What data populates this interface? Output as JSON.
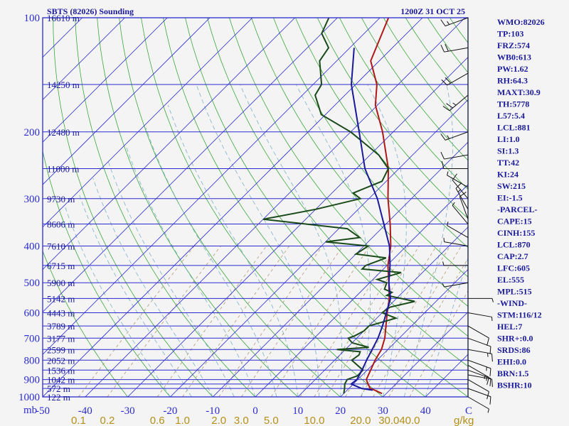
{
  "chart_data": {
    "type": "line",
    "subtype": "skew-t log-p sounding",
    "title_left": "SBTS (82026) Sounding",
    "title_right": "1200Z 31 OCT 25",
    "pressure_unit": "mb",
    "pressure_ticks": [
      "100",
      "200",
      "300",
      "400",
      "500",
      "600",
      "700",
      "800",
      "900",
      "1000"
    ],
    "pressure_levels": [
      100,
      150,
      200,
      250,
      300,
      350,
      400,
      450,
      500,
      550,
      600,
      650,
      700,
      750,
      800,
      850,
      900,
      925,
      950,
      1000
    ],
    "height_labels": [
      {
        "p": 100,
        "label": "16610 m"
      },
      {
        "p": 150,
        "label": "14250 m"
      },
      {
        "p": 200,
        "label": "12480 m"
      },
      {
        "p": 250,
        "label": "11000 m"
      },
      {
        "p": 300,
        "label": "9730 m"
      },
      {
        "p": 350,
        "label": "8606 m"
      },
      {
        "p": 400,
        "label": "7610 m"
      },
      {
        "p": 450,
        "label": "6715 m"
      },
      {
        "p": 500,
        "label": "5900 m"
      },
      {
        "p": 550,
        "label": "5142 m"
      },
      {
        "p": 600,
        "label": "4443 m"
      },
      {
        "p": 650,
        "label": "3789 m"
      },
      {
        "p": 700,
        "label": "3177 m"
      },
      {
        "p": 750,
        "label": "2599 m"
      },
      {
        "p": 800,
        "label": "2052 m"
      },
      {
        "p": 850,
        "label": "1536 m"
      },
      {
        "p": 900,
        "label": "1042 m"
      },
      {
        "p": 950,
        "label": "572 m"
      },
      {
        "p": 1000,
        "label": "122 m"
      }
    ],
    "temperature_unit": "C",
    "temperature_ticks": [
      "-50",
      "-40",
      "-30",
      "-20",
      "-10",
      "0",
      "10",
      "20",
      "30",
      "40"
    ],
    "xlim": [
      -50,
      50
    ],
    "mixing_ratio_unit": "g/kg",
    "mixing_ratio_labels": [
      "0.1",
      "0.2",
      "0.6",
      "1.0",
      "2.0",
      "3.0",
      "5.0",
      "10.0",
      "20.0",
      "30.0",
      "40.0"
    ],
    "series": [
      {
        "name": "Temperature",
        "color": "#b01818",
        "points": [
          [
            980,
            29
          ],
          [
            960,
            26.5
          ],
          [
            950,
            25
          ],
          [
            925,
            23.5
          ],
          [
            900,
            22
          ],
          [
            850,
            20.8
          ],
          [
            800,
            19.5
          ],
          [
            750,
            18.5
          ],
          [
            700,
            16.6
          ],
          [
            650,
            14
          ],
          [
            600,
            11.2
          ],
          [
            550,
            8.3
          ],
          [
            500,
            4.5
          ],
          [
            450,
            0.2
          ],
          [
            400,
            -3.7
          ],
          [
            350,
            -9
          ],
          [
            300,
            -15.5
          ],
          [
            250,
            -22.5
          ],
          [
            200,
            -32.5
          ],
          [
            170,
            -40.5
          ],
          [
            150,
            -45
          ],
          [
            130,
            -52
          ],
          [
            100,
            -58
          ]
        ]
      },
      {
        "name": "Dewpoint",
        "color": "#1a4a1a",
        "points": [
          [
            980,
            20
          ],
          [
            950,
            19
          ],
          [
            925,
            18
          ],
          [
            900,
            17.5
          ],
          [
            880,
            19
          ],
          [
            850,
            19
          ],
          [
            800,
            14
          ],
          [
            775,
            14.5
          ],
          [
            760,
            14
          ],
          [
            750,
            8
          ],
          [
            740,
            15
          ],
          [
            720,
            10
          ],
          [
            700,
            8
          ],
          [
            690,
            9
          ],
          [
            670,
            10
          ],
          [
            650,
            10
          ],
          [
            620,
            14.5
          ],
          [
            600,
            10
          ],
          [
            580,
            10.5
          ],
          [
            560,
            15
          ],
          [
            540,
            7
          ],
          [
            530,
            7.5
          ],
          [
            520,
            5
          ],
          [
            500,
            4
          ],
          [
            490,
            1
          ],
          [
            470,
            5
          ],
          [
            460,
            -5
          ],
          [
            450,
            -5
          ],
          [
            430,
            -2
          ],
          [
            420,
            -10
          ],
          [
            400,
            -9
          ],
          [
            390,
            -20
          ],
          [
            380,
            -13
          ],
          [
            360,
            -18
          ],
          [
            340,
            -40
          ],
          [
            320,
            -30
          ],
          [
            300,
            -22
          ],
          [
            290,
            -25
          ],
          [
            270,
            -21
          ],
          [
            250,
            -22.5
          ],
          [
            230,
            -28
          ],
          [
            200,
            -40
          ],
          [
            180,
            -51
          ],
          [
            160,
            -57
          ],
          [
            150,
            -58
          ],
          [
            130,
            -64
          ],
          [
            120,
            -65
          ],
          [
            110,
            -70
          ],
          [
            100,
            -72
          ]
        ]
      },
      {
        "name": "Parcel",
        "color": "#1a1a9a",
        "points": [
          [
            960,
            26
          ],
          [
            950,
            23
          ],
          [
            925,
            19.5
          ],
          [
            900,
            19.8
          ],
          [
            850,
            18.8
          ],
          [
            800,
            17.5
          ],
          [
            750,
            16.3
          ],
          [
            700,
            15
          ],
          [
            650,
            13.2
          ],
          [
            600,
            11
          ],
          [
            550,
            8.6
          ],
          [
            500,
            4.5
          ],
          [
            450,
            0.7
          ],
          [
            400,
            -4
          ],
          [
            350,
            -10.5
          ],
          [
            300,
            -18
          ],
          [
            250,
            -28
          ],
          [
            200,
            -38
          ],
          [
            150,
            -51
          ],
          [
            120,
            -59
          ]
        ]
      }
    ],
    "station_indices": [
      "WMO:82026",
      "TP:103",
      "FRZ:574",
      "WB0:613",
      "PW:1.62",
      "RH:64.3",
      "MAXT:30.9",
      "TH:5778",
      "L57:5.4",
      "LCL:881",
      "LI:1.0",
      "SI:1.3",
      "TT:42",
      "KI:24",
      "SW:215",
      "EI:-1.5",
      "-PARCEL-",
      "CAPE:15",
      "CINH:155",
      "LCL:870",
      "CAP:2.7",
      "LFC:605",
      "EL:555",
      "MPL:515",
      "-WIND-",
      "STM:116/12",
      "HEL:7",
      "SHR+:0.0",
      "SRDS:86",
      "EHI:0.0",
      "BRN:1.5",
      "BSHR:10"
    ],
    "wind_barbs": [
      {
        "p": 100,
        "dir": 250,
        "spd": 15
      },
      {
        "p": 120,
        "dir": 260,
        "spd": 20
      },
      {
        "p": 140,
        "dir": 240,
        "spd": 20
      },
      {
        "p": 160,
        "dir": 230,
        "spd": 25
      },
      {
        "p": 200,
        "dir": 250,
        "spd": 15
      },
      {
        "p": 230,
        "dir": 260,
        "spd": 10
      },
      {
        "p": 250,
        "dir": 270,
        "spd": 10
      },
      {
        "p": 280,
        "dir": 300,
        "spd": 5
      },
      {
        "p": 300,
        "dir": 320,
        "spd": 10
      },
      {
        "p": 320,
        "dir": 330,
        "spd": 15
      },
      {
        "p": 340,
        "dir": 340,
        "spd": 10
      },
      {
        "p": 350,
        "dir": 320,
        "spd": 5
      },
      {
        "p": 380,
        "dir": 300,
        "spd": 5
      },
      {
        "p": 400,
        "dir": 280,
        "spd": 5
      },
      {
        "p": 450,
        "dir": 270,
        "spd": 5
      },
      {
        "p": 500,
        "dir": 260,
        "spd": 5
      },
      {
        "p": 550,
        "dir": 90,
        "spd": 5
      },
      {
        "p": 600,
        "dir": 100,
        "spd": 5
      },
      {
        "p": 650,
        "dir": 120,
        "spd": 10
      },
      {
        "p": 700,
        "dir": 110,
        "spd": 10
      },
      {
        "p": 750,
        "dir": 100,
        "spd": 15
      },
      {
        "p": 800,
        "dir": 110,
        "spd": 15
      },
      {
        "p": 825,
        "dir": 120,
        "spd": 15
      },
      {
        "p": 850,
        "dir": 110,
        "spd": 15
      },
      {
        "p": 875,
        "dir": 100,
        "spd": 10
      },
      {
        "p": 900,
        "dir": 120,
        "spd": 10
      },
      {
        "p": 950,
        "dir": 110,
        "spd": 10
      },
      {
        "p": 1000,
        "dir": 120,
        "spd": 5
      }
    ]
  }
}
